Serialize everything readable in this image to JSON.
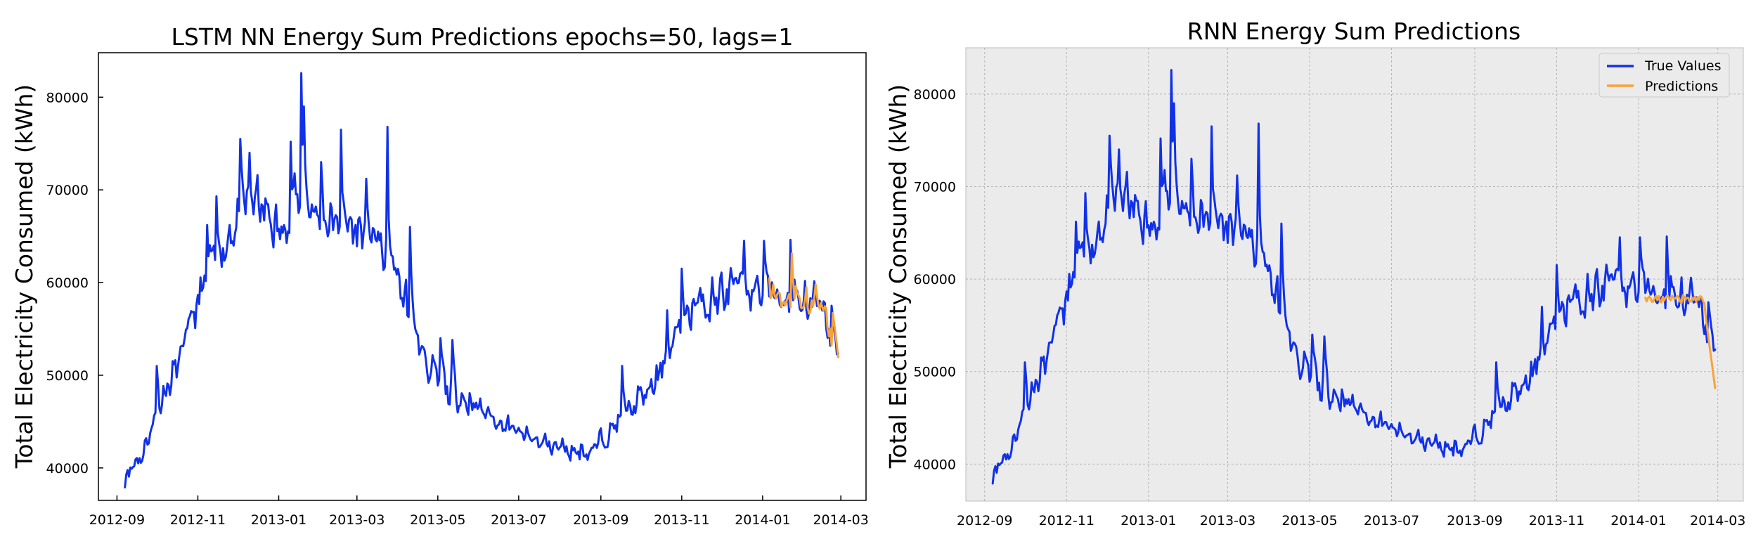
{
  "colors": {
    "true_values": "#1131e8",
    "predictions": "#f7a33b",
    "panel_bg_right": "#ebebeb",
    "grid": "#b8b8b8"
  },
  "chart_data": [
    {
      "type": "line",
      "title": "LSTM NN Energy Sum Predictions epochs=50, lags=1",
      "ylabel": "Total Electricity Consumed (kWh)",
      "xlabel": "",
      "xlim": [
        "2012-08-18",
        "2014-03-20"
      ],
      "ylim": [
        36500,
        84800
      ],
      "xticks": [
        "2012-09",
        "2012-11",
        "2013-01",
        "2013-03",
        "2013-05",
        "2013-07",
        "2013-09",
        "2013-11",
        "2014-01",
        "2014-03"
      ],
      "yticks": [
        40000,
        50000,
        60000,
        70000,
        80000
      ],
      "ytick_labels": [
        "40000",
        "50000",
        "60000",
        "70000",
        "80000"
      ],
      "grid": false,
      "legend": null,
      "series": [
        {
          "role": "actual",
          "x": [],
          "y": []
        },
        {
          "role": "predicted",
          "x": [],
          "y": []
        }
      ]
    },
    {
      "type": "line",
      "title": "RNN Energy Sum Predictions",
      "ylabel": "Total Electricity Consumed (kWh)",
      "xlabel": "",
      "xlim": [
        "2012-08-18",
        "2014-03-20"
      ],
      "ylim": [
        36000,
        85000
      ],
      "xticks": [
        "2012-09",
        "2012-11",
        "2013-01",
        "2013-03",
        "2013-05",
        "2013-07",
        "2013-09",
        "2013-11",
        "2014-01",
        "2014-03"
      ],
      "yticks": [
        40000,
        50000,
        60000,
        70000,
        80000
      ],
      "ytick_labels": [
        "40000",
        "50000",
        "60000",
        "70000",
        "80000"
      ],
      "grid": true,
      "legend": "top-right",
      "series": [
        {
          "name": "True Values",
          "role": "actual",
          "x": [],
          "y": []
        },
        {
          "name": "Predictions",
          "role": "predicted",
          "x": [],
          "y": []
        }
      ]
    }
  ]
}
